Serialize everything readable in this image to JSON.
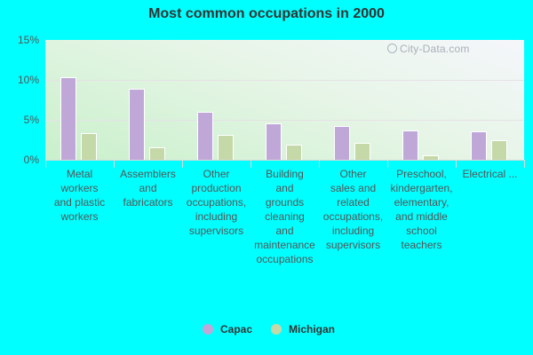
{
  "chart_data": {
    "type": "bar",
    "title": "Most common occupations in 2000",
    "xlabel": "",
    "ylabel": "",
    "ylim": [
      0,
      15
    ],
    "yticks": [
      "0%",
      "5%",
      "10%",
      "15%"
    ],
    "grid": true,
    "legend_position": "bottom",
    "categories": [
      "Metal workers and plastic workers",
      "Assemblers and fabricators",
      "Other production occupations, including supervisors",
      "Building and grounds cleaning and maintenance occupations",
      "Other sales and related occupations, including supervisors",
      "Preschool, kindergarten, elementary, and middle school teachers",
      "Electrical ..."
    ],
    "category_label_lines": [
      [
        "Metal",
        "workers",
        "and plastic",
        "workers"
      ],
      [
        "Assemblers",
        "and",
        "fabricators"
      ],
      [
        "Other",
        "production",
        "occupations,",
        "including",
        "supervisors"
      ],
      [
        "Building",
        "and",
        "grounds",
        "cleaning",
        "and",
        "maintenance",
        "occupations"
      ],
      [
        "Other",
        "sales and",
        "related",
        "occupations,",
        "including",
        "supervisors"
      ],
      [
        "Preschool,",
        "kindergarten,",
        "elementary,",
        "and middle",
        "school",
        "teachers"
      ],
      [
        "Electrical ..."
      ]
    ],
    "series": [
      {
        "name": "Capac",
        "color": "#bfa8d8",
        "values": [
          10.3,
          8.9,
          6.0,
          4.6,
          4.2,
          3.7,
          3.6
        ]
      },
      {
        "name": "Michigan",
        "color": "#c4d8a8",
        "values": [
          3.3,
          1.6,
          3.1,
          1.9,
          2.1,
          0.6,
          2.5
        ]
      }
    ],
    "watermark": "City-Data.com"
  },
  "colors": {
    "background": "#00ffff",
    "title": "#333333",
    "tick_text": "#555555",
    "gridline": "#e6e0e6"
  }
}
